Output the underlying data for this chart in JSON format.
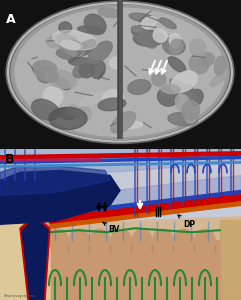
{
  "panel_A_label": "A",
  "panel_B_label": "B",
  "figsize": [
    2.41,
    3.0
  ],
  "dpi": 100,
  "label_BV": "BV",
  "label_DP": "DP",
  "colors": {
    "bg_dark": "#111111",
    "brain_mid": "#aaaaaa",
    "brain_light": "#cccccc",
    "brain_sulci": "#666666",
    "skull_ring": "#888888",
    "subdural_blue_dark": "#0a1a5a",
    "subdural_blue_mid": "#1a2f8a",
    "subdural_blue_light": "#3355bb",
    "blood_red": "#cc0000",
    "blood_red_dark": "#990000",
    "dura_orange": "#cc5500",
    "skin_tan": "#d4b896",
    "bone_tan": "#c8a870",
    "bone_inner": "#ddc898",
    "brain_tan": "#c89870",
    "brain_tan2": "#b88860",
    "green_vessel": "#228833",
    "blue_vessel": "#2244bb",
    "blue_vessel_light": "#4488cc",
    "pink_vessel": "#cc3388",
    "arachnoid_blue": "#6688cc",
    "white": "#ffffff",
    "black": "#111111",
    "gray_bg": "#888888",
    "light_blue_upper": "#aabbdd",
    "translucent_blue": "#5577bb"
  }
}
